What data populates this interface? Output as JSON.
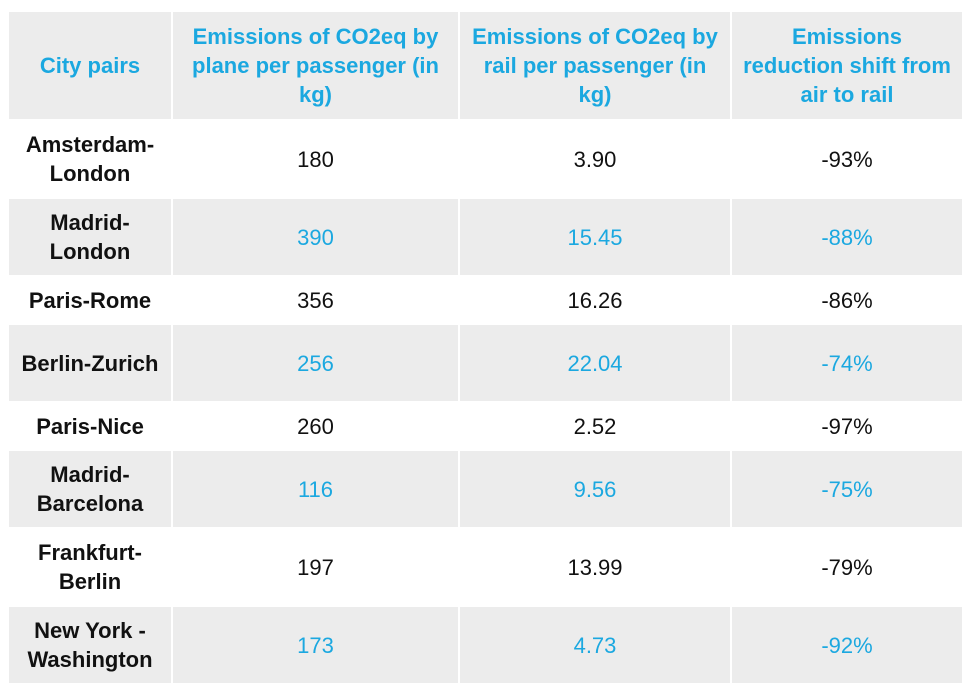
{
  "table": {
    "headers": [
      "City pairs",
      "Emissions of CO2eq by plane per passenger (in kg)",
      "Emissions of CO2eq by rail per passenger (in kg)",
      "Emissions reduction shift from air to rail"
    ],
    "rows": [
      {
        "city": "Amsterdam-London",
        "plane": "180",
        "rail": "3.90",
        "reduction": "-93%"
      },
      {
        "city": "Madrid-London",
        "plane": "390",
        "rail": "15.45",
        "reduction": "-88%"
      },
      {
        "city": "Paris-Rome",
        "plane": "356",
        "rail": "16.26",
        "reduction": "-86%"
      },
      {
        "city": "Berlin-Zurich",
        "plane": "256",
        "rail": "22.04",
        "reduction": "-74%"
      },
      {
        "city": "Paris-Nice",
        "plane": "260",
        "rail": "2.52",
        "reduction": "-97%"
      },
      {
        "city": "Madrid-Barcelona",
        "plane": "116",
        "rail": "9.56",
        "reduction": "-75%"
      },
      {
        "city": "Frankfurt-Berlin",
        "plane": "197",
        "rail": "13.99",
        "reduction": "-79%"
      },
      {
        "city": "New York - Washington",
        "plane": "173",
        "rail": "4.73",
        "reduction": "-92%"
      }
    ]
  },
  "colors": {
    "accent": "#1ba8e0",
    "stripe": "#ececec",
    "text": "#111111"
  }
}
